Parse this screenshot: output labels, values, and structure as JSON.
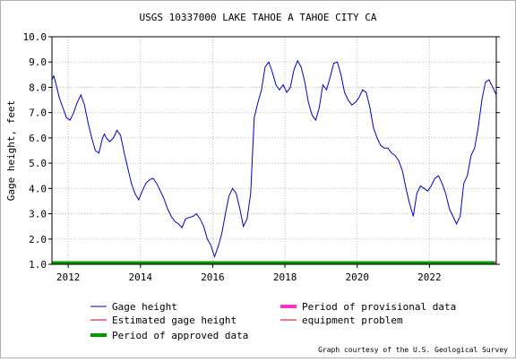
{
  "chart_data": {
    "type": "line",
    "title": "USGS 10337000 LAKE TAHOE A TAHOE CITY CA",
    "ylabel": "Gage height, feet",
    "xlabel": "",
    "ylim": [
      1.0,
      10.0
    ],
    "xlim": [
      2011.55,
      2023.85
    ],
    "yticks": [
      1.0,
      2.0,
      3.0,
      4.0,
      5.0,
      6.0,
      7.0,
      8.0,
      9.0,
      10.0
    ],
    "ytick_labels": [
      "1.0",
      "2.0",
      "3.0",
      "4.0",
      "5.0",
      "6.0",
      "7.0",
      "8.0",
      "9.0",
      "10.0"
    ],
    "xticks": [
      2012,
      2014,
      2016,
      2018,
      2020,
      2022
    ],
    "xtick_labels": [
      "2012",
      "2014",
      "2016",
      "2018",
      "2020",
      "2022"
    ],
    "series": [
      {
        "name": "Gage height",
        "color": "#0000cc",
        "x": [
          2011.55,
          2011.6,
          2011.65,
          2011.75,
          2011.85,
          2011.95,
          2012.05,
          2012.15,
          2012.25,
          2012.35,
          2012.45,
          2012.55,
          2012.65,
          2012.75,
          2012.85,
          2012.95,
          2013.0,
          2013.05,
          2013.15,
          2013.25,
          2013.35,
          2013.45,
          2013.55,
          2013.65,
          2013.75,
          2013.85,
          2013.95,
          2014.05,
          2014.15,
          2014.25,
          2014.35,
          2014.45,
          2014.55,
          2014.65,
          2014.75,
          2014.85,
          2014.95,
          2015.05,
          2015.15,
          2015.25,
          2015.35,
          2015.45,
          2015.55,
          2015.65,
          2015.75,
          2015.85,
          2015.95,
          2016.05,
          2016.15,
          2016.25,
          2016.35,
          2016.45,
          2016.55,
          2016.65,
          2016.75,
          2016.85,
          2016.95,
          2017.05,
          2017.15,
          2017.25,
          2017.35,
          2017.45,
          2017.55,
          2017.65,
          2017.75,
          2017.85,
          2017.95,
          2018.05,
          2018.15,
          2018.25,
          2018.35,
          2018.45,
          2018.55,
          2018.65,
          2018.75,
          2018.85,
          2018.95,
          2019.05,
          2019.15,
          2019.25,
          2019.35,
          2019.45,
          2019.55,
          2019.65,
          2019.75,
          2019.85,
          2019.95,
          2020.05,
          2020.15,
          2020.25,
          2020.35,
          2020.45,
          2020.55,
          2020.65,
          2020.75,
          2020.85,
          2020.95,
          2021.05,
          2021.15,
          2021.25,
          2021.35,
          2021.45,
          2021.55,
          2021.65,
          2021.75,
          2021.85,
          2021.95,
          2022.05,
          2022.15,
          2022.25,
          2022.35,
          2022.45,
          2022.55,
          2022.65,
          2022.75,
          2022.85,
          2022.95,
          2023.05,
          2023.15,
          2023.25,
          2023.35,
          2023.45,
          2023.55,
          2023.65,
          2023.75,
          2023.85
        ],
        "y": [
          8.3,
          8.45,
          8.2,
          7.6,
          7.2,
          6.8,
          6.7,
          7.0,
          7.4,
          7.7,
          7.3,
          6.6,
          6.0,
          5.5,
          5.4,
          6.0,
          6.15,
          6.0,
          5.85,
          6.0,
          6.3,
          6.1,
          5.4,
          4.8,
          4.2,
          3.8,
          3.55,
          3.9,
          4.2,
          4.35,
          4.4,
          4.2,
          3.9,
          3.6,
          3.2,
          2.9,
          2.7,
          2.6,
          2.45,
          2.8,
          2.85,
          2.9,
          3.0,
          2.8,
          2.5,
          2.0,
          1.75,
          1.3,
          1.7,
          2.2,
          3.0,
          3.7,
          4.0,
          3.8,
          3.2,
          2.5,
          2.8,
          3.8,
          6.8,
          7.4,
          7.9,
          8.8,
          9.0,
          8.6,
          8.1,
          7.9,
          8.1,
          7.8,
          8.0,
          8.7,
          9.05,
          8.8,
          8.2,
          7.4,
          6.9,
          6.7,
          7.2,
          8.1,
          7.9,
          8.4,
          8.95,
          9.0,
          8.5,
          7.8,
          7.5,
          7.3,
          7.4,
          7.6,
          7.9,
          7.8,
          7.2,
          6.4,
          6.0,
          5.7,
          5.6,
          5.6,
          5.4,
          5.3,
          5.1,
          4.7,
          4.0,
          3.4,
          2.9,
          3.8,
          4.1,
          4.0,
          3.9,
          4.1,
          4.4,
          4.5,
          4.2,
          3.8,
          3.2,
          2.9,
          2.6,
          2.9,
          4.2,
          4.5,
          5.3,
          5.6,
          6.4,
          7.5,
          8.2,
          8.3,
          8.0,
          7.7
        ]
      }
    ],
    "reference_lines": [
      {
        "name": "Estimated gage height",
        "y": 10.0,
        "color": "#cc0000"
      }
    ],
    "approved_period": {
      "name": "Period of approved data",
      "x": [
        2011.55,
        2023.8
      ],
      "color": "#009900"
    },
    "provisional_period": {
      "name": "Period of provisional data",
      "x": [
        2023.8,
        2023.85
      ],
      "color": "#ff33cc"
    },
    "grid": true,
    "legend": {
      "placement": "bottom",
      "items": [
        {
          "label": "Gage height",
          "color": "#0000cc",
          "style": "thin"
        },
        {
          "label": "Period of provisional data",
          "color": "#ff33cc",
          "style": "thick"
        },
        {
          "label": "Estimated gage height",
          "color": "#cc0000",
          "style": "thin"
        },
        {
          "label": "equipment problem",
          "color": "#cc0000",
          "style": "thin"
        },
        {
          "label": "Period of approved data",
          "color": "#009900",
          "style": "thick"
        }
      ]
    },
    "credit": "Graph courtesy of the U.S. Geological Survey"
  }
}
